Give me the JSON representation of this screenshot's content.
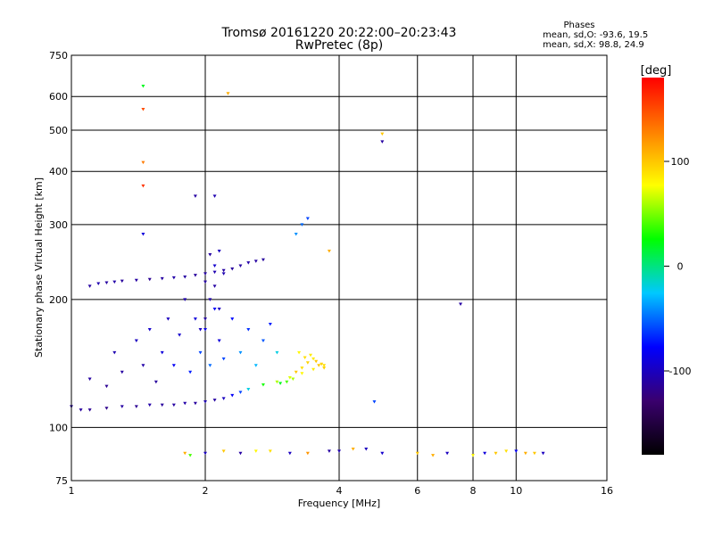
{
  "chart_data": {
    "type": "scatter",
    "title": "Tromsø 20161220 20:22:00–20:23:43",
    "subtitle": "RwPretec (8p)",
    "xlabel": "Frequency [MHz]",
    "ylabel": "Stationary phase Virtual Height [km]",
    "x_scale": "log",
    "y_scale": "log",
    "xlim": [
      1,
      16
    ],
    "ylim": [
      75,
      750
    ],
    "x_ticks": [
      1,
      2,
      4,
      6,
      8,
      10,
      16
    ],
    "y_ticks": [
      75,
      100,
      200,
      300,
      400,
      500,
      600,
      750
    ],
    "grid": true,
    "stats": {
      "heading": "Phases",
      "line_o": "mean, sd,O: -93.6, 19.5",
      "line_x": "mean, sd,X:  98.8, 24.9"
    },
    "colorbar": {
      "label": "[deg]",
      "ticks": [
        "100",
        "0",
        "-100"
      ],
      "tick_values": [
        100,
        0,
        -100
      ],
      "range": [
        -180,
        180
      ],
      "colors": [
        "#000000",
        "#3a006e",
        "#0000ff",
        "#00c8ff",
        "#00ff00",
        "#ffff00",
        "#ff8000",
        "#ff0000"
      ]
    },
    "clusters": [
      {
        "desc": "low F layer trace",
        "points": [
          [
            1.0,
            112
          ],
          [
            1.05,
            110
          ],
          [
            1.1,
            110
          ],
          [
            1.2,
            111
          ],
          [
            1.3,
            112
          ],
          [
            1.4,
            112
          ],
          [
            1.5,
            113
          ],
          [
            1.6,
            113
          ],
          [
            1.7,
            113
          ],
          [
            1.8,
            114
          ],
          [
            1.9,
            114
          ],
          [
            2.0,
            115
          ],
          [
            2.1,
            116
          ],
          [
            2.2,
            117
          ],
          [
            2.3,
            119
          ],
          [
            2.4,
            121
          ],
          [
            2.5,
            123
          ],
          [
            2.7,
            126
          ],
          [
            2.9,
            128
          ],
          [
            3.1,
            131
          ],
          [
            3.3,
            134
          ],
          [
            3.5,
            137
          ],
          [
            3.7,
            140
          ]
        ],
        "phase": [
          -110,
          -112,
          -115,
          -118,
          -110,
          -115,
          -108,
          -112,
          -110,
          -108,
          -112,
          -105,
          -110,
          -100,
          -80,
          -60,
          -20,
          30,
          60,
          70,
          80,
          85,
          90
        ]
      },
      {
        "desc": "upper F trace",
        "points": [
          [
            1.1,
            215
          ],
          [
            1.15,
            218
          ],
          [
            1.2,
            219
          ],
          [
            1.25,
            220
          ],
          [
            1.3,
            221
          ],
          [
            1.4,
            222
          ],
          [
            1.5,
            223
          ],
          [
            1.6,
            224
          ],
          [
            1.7,
            225
          ],
          [
            1.8,
            226
          ],
          [
            1.9,
            228
          ],
          [
            2.0,
            230
          ],
          [
            2.1,
            232
          ],
          [
            2.2,
            234
          ],
          [
            2.3,
            236
          ],
          [
            2.4,
            240
          ],
          [
            2.5,
            244
          ],
          [
            2.6,
            246
          ],
          [
            2.7,
            248
          ]
        ],
        "phase": [
          -110,
          -105,
          -110,
          -108,
          -112,
          -110,
          -115,
          -110,
          -108,
          -110,
          -112,
          -110,
          -105,
          -110,
          -112,
          -110,
          -108,
          -110,
          -112
        ]
      },
      {
        "desc": "spread F region",
        "points": [
          [
            1.1,
            130
          ],
          [
            1.2,
            125
          ],
          [
            1.25,
            150
          ],
          [
            1.3,
            135
          ],
          [
            1.4,
            160
          ],
          [
            1.45,
            140
          ],
          [
            1.5,
            170
          ],
          [
            1.55,
            128
          ],
          [
            1.6,
            150
          ],
          [
            1.65,
            180
          ],
          [
            1.7,
            140
          ],
          [
            1.75,
            165
          ],
          [
            1.8,
            200
          ],
          [
            1.85,
            135
          ],
          [
            1.9,
            180
          ],
          [
            1.95,
            150
          ],
          [
            2.0,
            170
          ],
          [
            2.05,
            140
          ],
          [
            2.1,
            190
          ],
          [
            2.15,
            160
          ],
          [
            2.2,
            145
          ],
          [
            2.3,
            180
          ],
          [
            2.4,
            150
          ],
          [
            2.5,
            170
          ],
          [
            2.6,
            140
          ],
          [
            2.7,
            160
          ],
          [
            2.8,
            175
          ],
          [
            2.9,
            150
          ]
        ],
        "phase": [
          -110,
          -115,
          -105,
          -110,
          -100,
          -108,
          -95,
          -112,
          -90,
          -100,
          -80,
          -95,
          -105,
          -70,
          -90,
          -60,
          -85,
          -50,
          -80,
          -90,
          -60,
          -75,
          -40,
          -65,
          -30,
          -55,
          -70,
          -20
        ]
      },
      {
        "desc": "vertical trace near 2 MHz",
        "points": [
          [
            1.95,
            170
          ],
          [
            2.0,
            180
          ],
          [
            2.05,
            200
          ],
          [
            2.0,
            220
          ],
          [
            2.1,
            240
          ],
          [
            2.05,
            255
          ],
          [
            2.15,
            260
          ],
          [
            2.2,
            230
          ],
          [
            2.1,
            215
          ],
          [
            2.15,
            190
          ]
        ],
        "phase": [
          -100,
          -110,
          -105,
          -110,
          -95,
          -110,
          -100,
          -105,
          -110,
          -100
        ]
      },
      {
        "desc": "yellow cusp",
        "points": [
          [
            3.2,
            135
          ],
          [
            3.3,
            138
          ],
          [
            3.4,
            142
          ],
          [
            3.5,
            145
          ],
          [
            3.6,
            140
          ],
          [
            3.7,
            138
          ],
          [
            3.25,
            150
          ],
          [
            3.35,
            146
          ],
          [
            3.45,
            148
          ],
          [
            3.55,
            143
          ],
          [
            3.65,
            141
          ],
          [
            3.15,
            130
          ],
          [
            3.05,
            128
          ],
          [
            2.95,
            127
          ]
        ],
        "phase": [
          100,
          90,
          95,
          85,
          100,
          95,
          80,
          90,
          85,
          100,
          95,
          60,
          40,
          20
        ]
      },
      {
        "desc": "E layer near 88 km",
        "points": [
          [
            1.8,
            87
          ],
          [
            1.85,
            86
          ],
          [
            2.0,
            87
          ],
          [
            2.2,
            88
          ],
          [
            2.4,
            87
          ],
          [
            2.6,
            88
          ],
          [
            2.8,
            88
          ],
          [
            3.1,
            87
          ],
          [
            3.4,
            87
          ],
          [
            3.8,
            88
          ],
          [
            4.0,
            88
          ],
          [
            4.3,
            89
          ],
          [
            4.6,
            89
          ],
          [
            5.0,
            87
          ],
          [
            6.0,
            87
          ],
          [
            6.5,
            86
          ],
          [
            7.0,
            87
          ],
          [
            8.0,
            86
          ],
          [
            8.5,
            87
          ],
          [
            9.0,
            87
          ],
          [
            9.5,
            88
          ],
          [
            10.0,
            88
          ],
          [
            10.5,
            87
          ],
          [
            11.0,
            87
          ],
          [
            11.5,
            87
          ]
        ],
        "phase": [
          110,
          40,
          -100,
          100,
          -110,
          80,
          90,
          -100,
          120,
          -110,
          -105,
          110,
          -100,
          -95,
          100,
          110,
          -100,
          80,
          -90,
          100,
          90,
          -80,
          110,
          100,
          -100
        ]
      },
      {
        "desc": "isolated echoes",
        "points": [
          [
            1.45,
            635
          ],
          [
            1.45,
            560
          ],
          [
            1.45,
            420
          ],
          [
            1.45,
            370
          ],
          [
            1.45,
            285
          ],
          [
            2.25,
            610
          ],
          [
            5.0,
            490
          ],
          [
            5.0,
            470
          ],
          [
            1.9,
            350
          ],
          [
            2.1,
            350
          ],
          [
            3.3,
            300
          ],
          [
            3.4,
            310
          ],
          [
            3.2,
            285
          ],
          [
            7.5,
            195
          ],
          [
            4.8,
            115
          ],
          [
            3.8,
            260
          ]
        ],
        "phase": [
          20,
          150,
          130,
          160,
          -90,
          110,
          100,
          -110,
          -110,
          -105,
          -50,
          -60,
          -40,
          -110,
          -60,
          110
        ]
      }
    ]
  }
}
